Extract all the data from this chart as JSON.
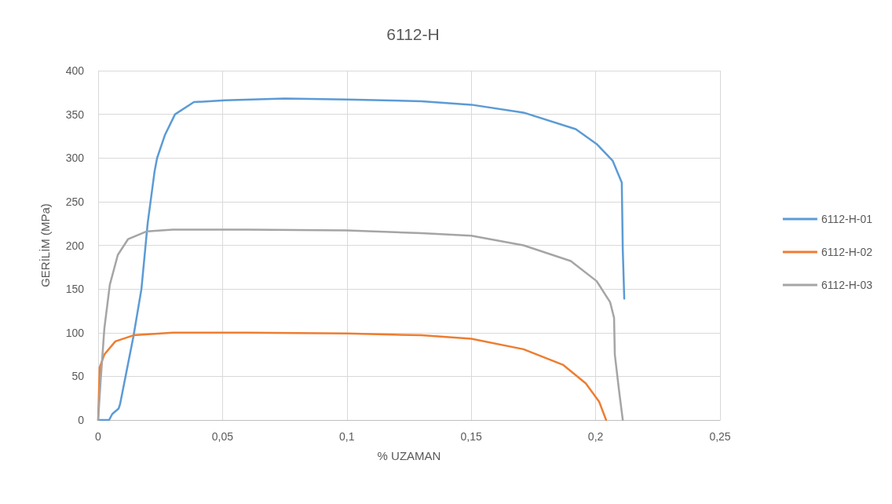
{
  "chart_data": {
    "type": "line",
    "title": "6112-H",
    "xlabel": "% UZAMAN",
    "ylabel": "GERİLİM (MPa)",
    "xlim": [
      0,
      0.25
    ],
    "xticks": [
      0,
      {
        "value": 0.05,
        "label": "0,05"
      },
      {
        "value": 0.1,
        "label": "0,1"
      },
      {
        "value": 0.15,
        "label": "0,15"
      },
      {
        "value": 0.2,
        "label": "0,2"
      },
      {
        "value": 0.25,
        "label": "0,25"
      }
    ],
    "ylim": [
      0,
      400
    ],
    "yticks": [
      0,
      50,
      100,
      150,
      200,
      250,
      300,
      350,
      400
    ],
    "grid": true,
    "legend": "right",
    "marker": "none",
    "line_style": "solid",
    "series": [
      {
        "name": "6112-H-01",
        "color": "#5b9bd5",
        "x": [
          0,
          0.0044,
          0.0057,
          0.0082,
          0.0088,
          0.0142,
          0.0174,
          0.0199,
          0.0227,
          0.0237,
          0.0268,
          0.0309,
          0.0385,
          0.0511,
          0.075,
          0.1,
          0.13,
          0.15,
          0.171,
          0.192,
          0.2004,
          0.2068,
          0.2105,
          0.2109,
          0.2115
        ],
        "values": [
          0,
          0,
          7,
          13,
          18,
          96,
          150,
          225,
          285,
          300,
          326,
          350,
          364,
          366,
          368,
          367,
          365,
          361,
          352,
          333,
          316,
          297,
          272,
          195,
          139
        ]
      },
      {
        "name": "6112-H-02",
        "color": "#ed7d31",
        "x": [
          0,
          0.0006,
          0.0025,
          0.0069,
          0.0142,
          0.03,
          0.06,
          0.1,
          0.13,
          0.15,
          0.171,
          0.187,
          0.196,
          0.2014,
          0.2042
        ],
        "values": [
          0,
          60,
          75,
          90,
          97,
          100,
          100,
          99,
          97,
          93,
          81,
          63,
          42,
          21,
          0
        ]
      },
      {
        "name": "6112-H-03",
        "color": "#a5a5a5",
        "x": [
          0,
          0.001,
          0.0025,
          0.0047,
          0.0079,
          0.012,
          0.0196,
          0.03,
          0.06,
          0.1,
          0.13,
          0.15,
          0.171,
          0.19,
          0.2004,
          0.2058,
          0.2074,
          0.2077,
          0.2093,
          0.2109
        ],
        "values": [
          0,
          45,
          105,
          155,
          189,
          207,
          216,
          218,
          218,
          217,
          214,
          211,
          200,
          182,
          159,
          135,
          117,
          75,
          36,
          0
        ]
      }
    ]
  }
}
